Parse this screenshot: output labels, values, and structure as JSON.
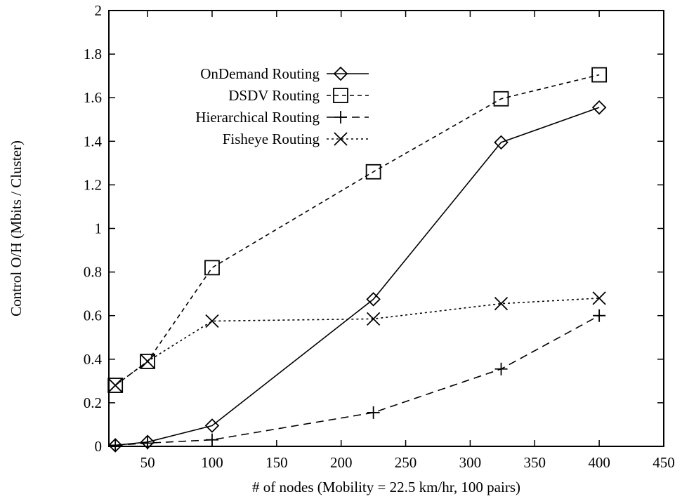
{
  "chart_data": {
    "type": "line",
    "title": "",
    "xlabel": "# of nodes (Mobility = 22.5 km/hr, 100 pairs)",
    "ylabel": "Control O/H (Mbits / Cluster)",
    "xlim": [
      20,
      450
    ],
    "ylim": [
      0,
      2
    ],
    "xticks": [
      50,
      100,
      150,
      200,
      250,
      300,
      350,
      400,
      450
    ],
    "yticks": [
      0,
      0.2,
      0.4,
      0.6,
      0.8,
      1,
      1.2,
      1.4,
      1.6,
      1.8,
      2
    ],
    "ytick_labels": [
      "0",
      "0.2",
      "0.4",
      "0.6",
      "0.8",
      "1",
      "1.2",
      "1.4",
      "1.6",
      "1.8",
      "2"
    ],
    "grid": false,
    "legend_position": "top-left",
    "series": [
      {
        "name": "OnDemand Routing",
        "marker": "diamond",
        "dash": "solid",
        "color": "#000000",
        "x": [
          25,
          50,
          100,
          225,
          324,
          400
        ],
        "y": [
          0.005,
          0.02,
          0.095,
          0.675,
          1.395,
          1.555
        ]
      },
      {
        "name": "DSDV Routing",
        "marker": "square",
        "dash": "dashed",
        "color": "#000000",
        "x": [
          25,
          50,
          100,
          225,
          324,
          400
        ],
        "y": [
          0.28,
          0.39,
          0.82,
          1.26,
          1.595,
          1.705
        ]
      },
      {
        "name": "Hierarchical Routing",
        "marker": "plus",
        "dash": "longdash",
        "color": "#000000",
        "x": [
          25,
          50,
          100,
          225,
          324,
          400
        ],
        "y": [
          0.005,
          0.015,
          0.03,
          0.155,
          0.355,
          0.6
        ]
      },
      {
        "name": "Fisheye Routing",
        "marker": "cross",
        "dash": "dotted",
        "color": "#000000",
        "x": [
          25,
          50,
          100,
          225,
          324,
          400
        ],
        "y": [
          0.28,
          0.39,
          0.575,
          0.585,
          0.655,
          0.68
        ]
      }
    ]
  }
}
